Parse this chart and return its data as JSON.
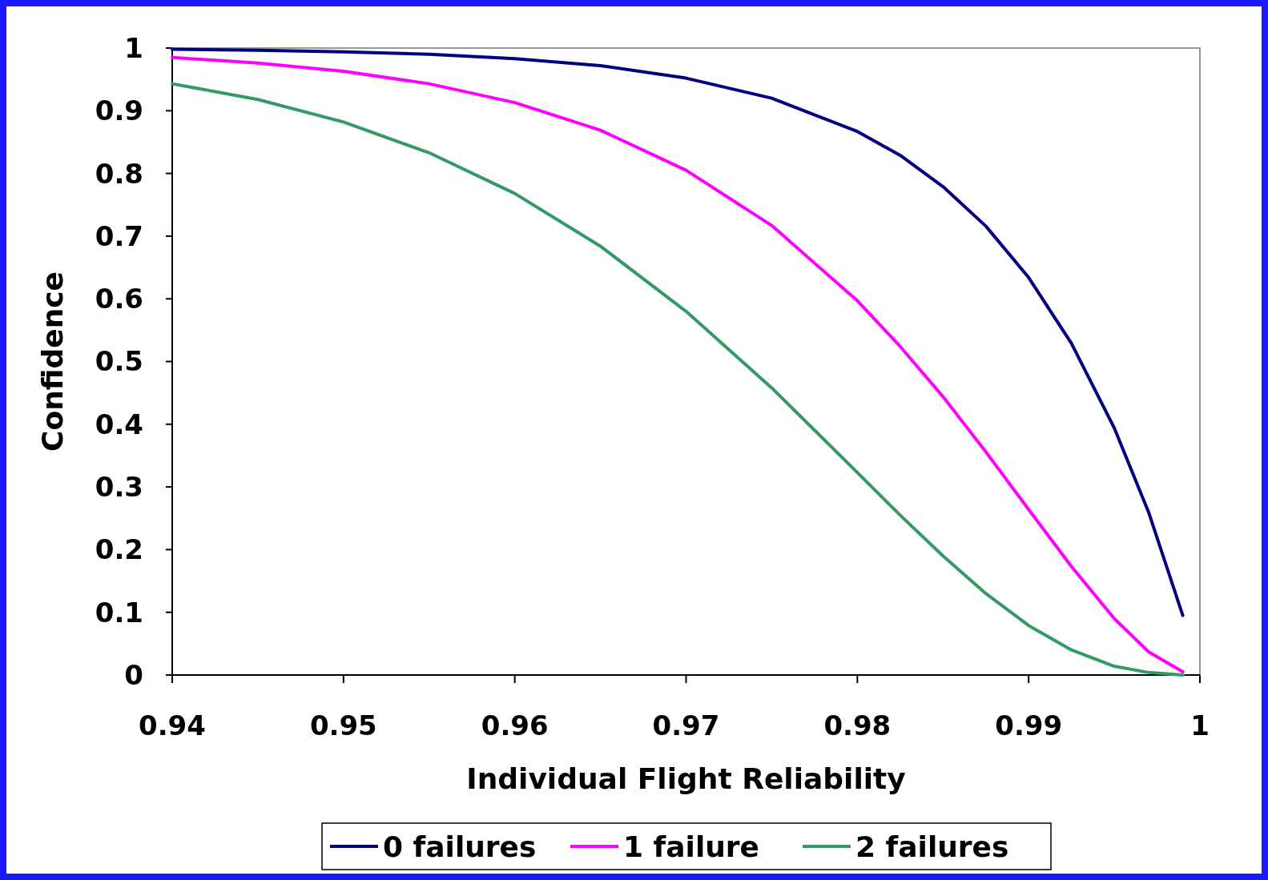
{
  "chart_data": {
    "type": "line",
    "xlabel": "Individual Flight Reliability",
    "ylabel": "Confidence",
    "x": [
      0.94,
      0.945,
      0.95,
      0.955,
      0.96,
      0.965,
      0.97,
      0.975,
      0.98,
      0.9825,
      0.985,
      0.9875,
      0.99,
      0.9925,
      0.995,
      0.997,
      0.999
    ],
    "series": [
      {
        "name": "0 failures",
        "color": "#000080",
        "values": [
          0.998,
          0.9965,
          0.994,
          0.99,
          0.983,
          0.972,
          0.952,
          0.92,
          0.867,
          0.829,
          0.779,
          0.716,
          0.634,
          0.529,
          0.394,
          0.26,
          0.095
        ]
      },
      {
        "name": "1 failure",
        "color": "#ff00ff",
        "values": [
          0.985,
          0.976,
          0.963,
          0.943,
          0.913,
          0.869,
          0.805,
          0.717,
          0.597,
          0.524,
          0.444,
          0.356,
          0.264,
          0.173,
          0.09,
          0.037,
          0.005
        ]
      },
      {
        "name": "2 failures",
        "color": "#339966",
        "values": [
          0.943,
          0.918,
          0.882,
          0.833,
          0.768,
          0.684,
          0.58,
          0.458,
          0.323,
          0.255,
          0.19,
          0.13,
          0.079,
          0.04,
          0.014,
          0.004,
          0
        ]
      }
    ],
    "xlim": [
      0.94,
      1
    ],
    "xticks": [
      0.94,
      0.95,
      0.96,
      0.97,
      0.98,
      0.99,
      1
    ],
    "ylim": [
      0,
      1
    ],
    "yticks": [
      0,
      0.1,
      0.2,
      0.3,
      0.4,
      0.5,
      0.6,
      0.7,
      0.8,
      0.9,
      1
    ],
    "grid": false,
    "legend": "bottom",
    "marker": "none",
    "line_style": "solid"
  }
}
